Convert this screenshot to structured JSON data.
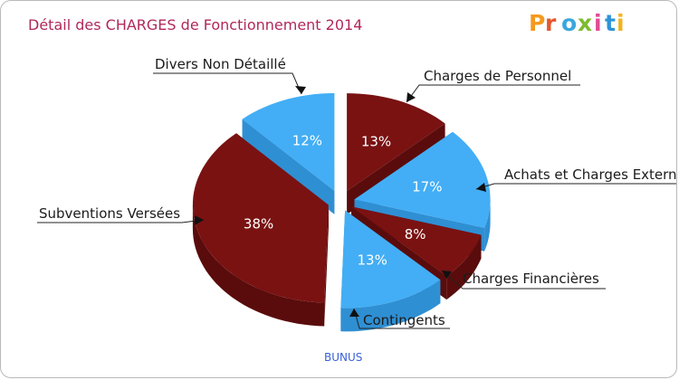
{
  "colors": {
    "title": "#b0285a",
    "maroon_top": "#7a1212",
    "maroon_side": "#5a0c0c",
    "blue_top": "#43aef5",
    "blue_side": "#2f8fd3",
    "city": "#3a63d8"
  },
  "logo": {
    "letters": [
      "P",
      "r",
      "o",
      "x",
      "i",
      "t",
      "i"
    ],
    "colors": [
      "#f39a1e",
      "#e4572e",
      "#3aa6dd",
      "#7dbb2f",
      "#e04a93",
      "#2f93d8",
      "#f3b320"
    ]
  },
  "chart_data": {
    "type": "pie",
    "title": "Détail des CHARGES de Fonctionnement 2014",
    "subtitle": "BUNUS",
    "slices": [
      {
        "name": "Charges de Personnel",
        "percent": 13,
        "label": "13%",
        "color": "maroon"
      },
      {
        "name": "Achats et Charges Externes",
        "percent": 17,
        "label": "17%",
        "color": "blue"
      },
      {
        "name": "Charges Financières",
        "percent": 8,
        "label": "8%",
        "color": "maroon"
      },
      {
        "name": "Contingents",
        "percent": 13,
        "label": "13%",
        "color": "blue"
      },
      {
        "name": "Subventions Versées",
        "percent": 38,
        "label": "38%",
        "color": "maroon"
      },
      {
        "name": "Divers Non Détaillé",
        "percent": 12,
        "label": "12%",
        "color": "blue"
      }
    ]
  }
}
